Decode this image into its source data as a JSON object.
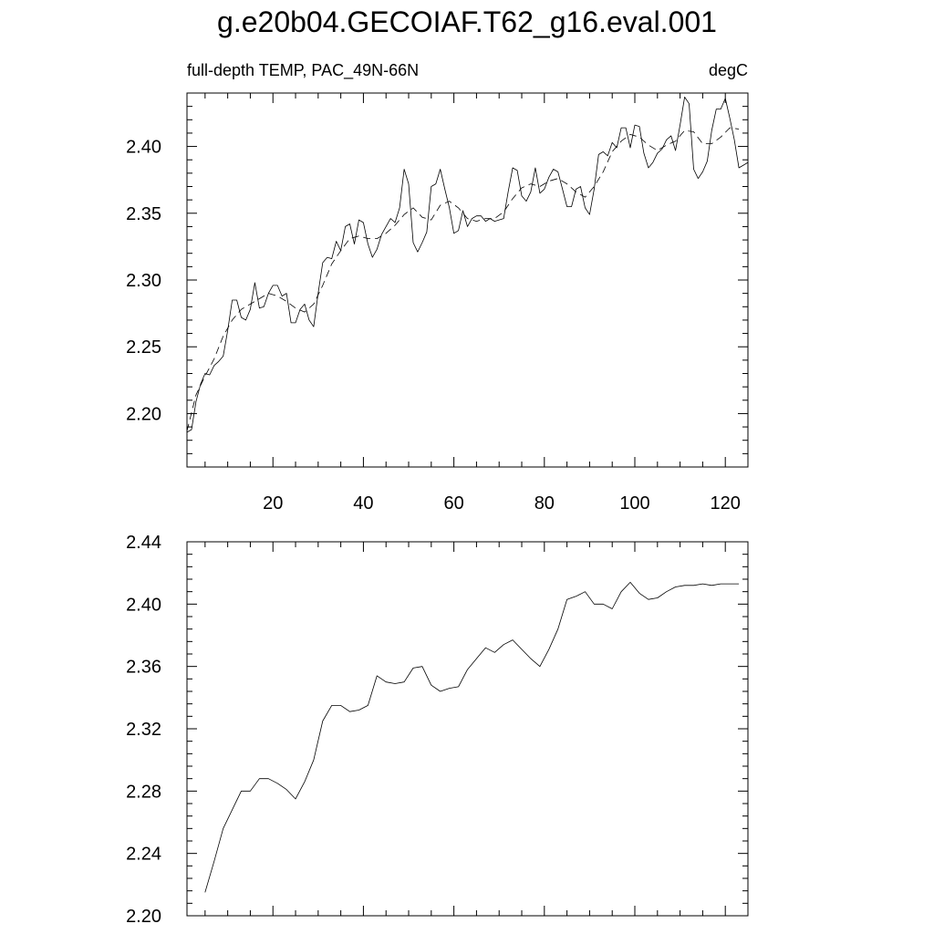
{
  "page": {
    "title": "g.e20b04.GECOIAF.T62_g16.eval.001"
  },
  "chart_data": [
    {
      "type": "line",
      "title": "",
      "left_label": "full-depth TEMP, PAC_49N-66N",
      "right_label": "degC",
      "xlabel": "",
      "ylabel": "",
      "xlim": [
        1,
        125
      ],
      "ylim": [
        2.16,
        2.44
      ],
      "x_ticks": [
        20,
        40,
        60,
        80,
        100,
        120
      ],
      "x_tick_labels": [
        "20",
        "40",
        "60",
        "80",
        "100",
        "120"
      ],
      "y_ticks": [
        2.2,
        2.25,
        2.3,
        2.35,
        2.4
      ],
      "y_tick_labels": [
        "2.20",
        "2.25",
        "2.30",
        "2.35",
        "2.40"
      ],
      "grid": false,
      "legend": "none",
      "series": [
        {
          "style": "solid",
          "x": [
            1,
            2,
            3,
            4,
            5,
            6,
            7,
            8,
            9,
            10,
            11,
            12,
            13,
            14,
            15,
            16,
            17,
            18,
            19,
            20,
            21,
            22,
            23,
            24,
            25,
            26,
            27,
            28,
            29,
            30,
            31,
            32,
            33,
            34,
            35,
            36,
            37,
            38,
            39,
            40,
            41,
            42,
            43,
            44,
            45,
            46,
            47,
            48,
            49,
            50,
            51,
            52,
            53,
            54,
            55,
            56,
            57,
            58,
            59,
            60,
            61,
            62,
            63,
            64,
            65,
            66,
            67,
            68,
            69,
            70,
            71,
            72,
            73,
            74,
            75,
            76,
            77,
            78,
            79,
            80,
            81,
            82,
            83,
            84,
            85,
            86,
            87,
            88,
            89,
            90,
            91,
            92,
            93,
            94,
            95,
            96,
            97,
            98,
            99,
            100,
            101,
            102,
            103,
            104,
            105,
            106,
            107,
            108,
            109,
            110,
            111,
            112,
            113,
            114,
            115,
            116,
            117,
            118,
            119,
            120,
            121,
            122,
            123,
            124,
            125
          ],
          "values": [
            2.186,
            2.188,
            2.209,
            2.222,
            2.23,
            2.229,
            2.236,
            2.239,
            2.243,
            2.262,
            2.285,
            2.285,
            2.272,
            2.27,
            2.278,
            2.298,
            2.279,
            2.28,
            2.29,
            2.296,
            2.296,
            2.288,
            2.29,
            2.268,
            2.268,
            2.278,
            2.282,
            2.27,
            2.265,
            2.29,
            2.313,
            2.317,
            2.316,
            2.329,
            2.322,
            2.34,
            2.342,
            2.327,
            2.345,
            2.343,
            2.327,
            2.317,
            2.323,
            2.334,
            2.34,
            2.346,
            2.343,
            2.354,
            2.383,
            2.372,
            2.328,
            2.321,
            2.328,
            2.336,
            2.37,
            2.372,
            2.383,
            2.368,
            2.354,
            2.335,
            2.337,
            2.352,
            2.34,
            2.346,
            2.348,
            2.348,
            2.344,
            2.346,
            2.344,
            2.345,
            2.346,
            2.366,
            2.384,
            2.382,
            2.363,
            2.359,
            2.366,
            2.384,
            2.365,
            2.368,
            2.377,
            2.383,
            2.381,
            2.368,
            2.355,
            2.355,
            2.368,
            2.37,
            2.354,
            2.349,
            2.368,
            2.394,
            2.396,
            2.393,
            2.403,
            2.399,
            2.414,
            2.414,
            2.399,
            2.416,
            2.415,
            2.395,
            2.384,
            2.388,
            2.395,
            2.398,
            2.405,
            2.408,
            2.397,
            2.416,
            2.437,
            2.432,
            2.383,
            2.376,
            2.381,
            2.389,
            2.412,
            2.428,
            2.428,
            2.436,
            2.421,
            2.405,
            2.384,
            2.386,
            2.388
          ]
        },
        {
          "style": "dashed",
          "x": [
            1,
            3,
            5,
            7,
            9,
            11,
            13,
            15,
            17,
            19,
            21,
            23,
            25,
            27,
            29,
            31,
            33,
            35,
            37,
            39,
            41,
            43,
            45,
            47,
            49,
            51,
            53,
            55,
            57,
            59,
            61,
            63,
            65,
            67,
            69,
            71,
            73,
            75,
            77,
            79,
            81,
            83,
            85,
            87,
            89,
            91,
            93,
            95,
            97,
            99,
            101,
            103,
            105,
            107,
            109,
            111,
            113,
            115,
            117,
            119,
            121,
            123
          ],
          "values": [
            2.187,
            2.214,
            2.228,
            2.241,
            2.258,
            2.27,
            2.278,
            2.282,
            2.286,
            2.29,
            2.288,
            2.284,
            2.279,
            2.276,
            2.282,
            2.296,
            2.312,
            2.322,
            2.331,
            2.333,
            2.331,
            2.331,
            2.335,
            2.341,
            2.349,
            2.354,
            2.347,
            2.345,
            2.356,
            2.359,
            2.354,
            2.346,
            2.344,
            2.346,
            2.346,
            2.351,
            2.361,
            2.369,
            2.372,
            2.37,
            2.374,
            2.376,
            2.372,
            2.366,
            2.362,
            2.37,
            2.381,
            2.396,
            2.404,
            2.409,
            2.407,
            2.401,
            2.397,
            2.401,
            2.404,
            2.412,
            2.411,
            2.402,
            2.402,
            2.407,
            2.414,
            2.413
          ]
        }
      ]
    },
    {
      "type": "line",
      "title": "",
      "xlabel": "",
      "ylabel": "",
      "xlim": [
        1,
        125
      ],
      "ylim": [
        2.2,
        2.44
      ],
      "x_ticks": [
        20,
        40,
        60,
        80,
        100,
        120
      ],
      "x_tick_labels": [],
      "y_ticks": [
        2.2,
        2.24,
        2.28,
        2.32,
        2.36,
        2.4,
        2.44
      ],
      "y_tick_labels": [
        "2.20",
        "2.24",
        "2.28",
        "2.32",
        "2.36",
        "2.40",
        "2.44"
      ],
      "grid": false,
      "legend": "none",
      "series": [
        {
          "style": "solid",
          "x": [
            5,
            7,
            9,
            11,
            13,
            15,
            17,
            19,
            21,
            23,
            25,
            27,
            29,
            31,
            33,
            35,
            37,
            39,
            41,
            43,
            45,
            47,
            49,
            51,
            53,
            55,
            57,
            59,
            61,
            63,
            65,
            67,
            69,
            71,
            73,
            75,
            77,
            79,
            81,
            83,
            85,
            87,
            89,
            91,
            93,
            95,
            97,
            99,
            101,
            103,
            105,
            107,
            109,
            111,
            113,
            115,
            117,
            119,
            121,
            123
          ],
          "values": [
            2.215,
            2.235,
            2.256,
            2.268,
            2.28,
            2.28,
            2.288,
            2.288,
            2.285,
            2.281,
            2.275,
            2.286,
            2.3,
            2.325,
            2.335,
            2.335,
            2.331,
            2.332,
            2.335,
            2.354,
            2.35,
            2.349,
            2.35,
            2.359,
            2.36,
            2.348,
            2.344,
            2.346,
            2.347,
            2.358,
            2.365,
            2.372,
            2.369,
            2.374,
            2.377,
            2.371,
            2.365,
            2.36,
            2.371,
            2.384,
            2.403,
            2.405,
            2.408,
            2.4,
            2.4,
            2.397,
            2.408,
            2.414,
            2.407,
            2.403,
            2.404,
            2.408,
            2.411,
            2.412,
            2.412,
            2.413,
            2.412,
            2.413,
            2.413,
            2.413
          ]
        }
      ]
    }
  ]
}
